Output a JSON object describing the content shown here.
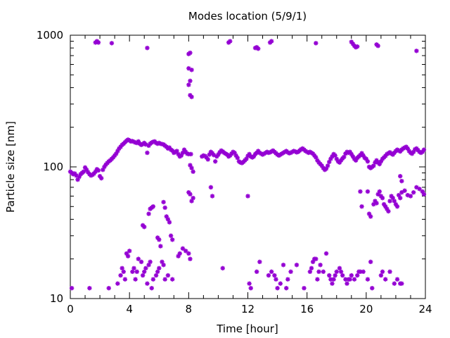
{
  "chart_data": {
    "type": "scatter",
    "title": "Modes location (5/9/1)",
    "xlabel": "Time [hour]",
    "ylabel": "Particle size [nm]",
    "xlim": [
      0,
      24
    ],
    "ylim": [
      10,
      1000
    ],
    "yscale": "log",
    "xticks": [
      0,
      4,
      8,
      12,
      16,
      20,
      24
    ],
    "yticks": [
      10,
      100,
      1000
    ],
    "grid": false,
    "legend": "none",
    "marker_color": "#9400d3",
    "points": [
      [
        0.0,
        92
      ],
      [
        0.1,
        90
      ],
      [
        0.2,
        88
      ],
      [
        0.3,
        89
      ],
      [
        0.4,
        86
      ],
      [
        0.5,
        80
      ],
      [
        0.6,
        84
      ],
      [
        0.7,
        88
      ],
      [
        0.8,
        90
      ],
      [
        0.9,
        92
      ],
      [
        1.0,
        99
      ],
      [
        1.1,
        95
      ],
      [
        1.2,
        91
      ],
      [
        1.3,
        88
      ],
      [
        1.4,
        86
      ],
      [
        1.5,
        87
      ],
      [
        1.6,
        89
      ],
      [
        1.7,
        92
      ],
      [
        1.8,
        96
      ],
      [
        1.9,
        94
      ],
      [
        2.0,
        85
      ],
      [
        2.1,
        82
      ],
      [
        2.2,
        95
      ],
      [
        2.3,
        100
      ],
      [
        2.4,
        104
      ],
      [
        2.5,
        107
      ],
      [
        2.6,
        110
      ],
      [
        2.7,
        112
      ],
      [
        2.8,
        115
      ],
      [
        2.9,
        118
      ],
      [
        3.0,
        122
      ],
      [
        3.1,
        126
      ],
      [
        3.2,
        132
      ],
      [
        3.3,
        138
      ],
      [
        3.4,
        142
      ],
      [
        3.5,
        147
      ],
      [
        3.6,
        150
      ],
      [
        3.7,
        154
      ],
      [
        3.8,
        158
      ],
      [
        3.9,
        161
      ],
      [
        4.0,
        159
      ],
      [
        4.1,
        156
      ],
      [
        4.2,
        157
      ],
      [
        4.3,
        155
      ],
      [
        4.4,
        153
      ],
      [
        4.5,
        152
      ],
      [
        4.6,
        156
      ],
      [
        4.7,
        150
      ],
      [
        4.8,
        147
      ],
      [
        4.9,
        149
      ],
      [
        5.0,
        152
      ],
      [
        5.1,
        148
      ],
      [
        5.2,
        128
      ],
      [
        5.3,
        145
      ],
      [
        5.4,
        150
      ],
      [
        5.5,
        153
      ],
      [
        5.6,
        155
      ],
      [
        5.7,
        156
      ],
      [
        5.8,
        152
      ],
      [
        5.9,
        150
      ],
      [
        6.0,
        152
      ],
      [
        6.1,
        150
      ],
      [
        6.2,
        149
      ],
      [
        6.3,
        148
      ],
      [
        6.4,
        145
      ],
      [
        6.5,
        142
      ],
      [
        6.6,
        138
      ],
      [
        6.7,
        140
      ],
      [
        6.8,
        135
      ],
      [
        6.9,
        133
      ],
      [
        7.0,
        128
      ],
      [
        7.1,
        130
      ],
      [
        7.2,
        132
      ],
      [
        7.3,
        125
      ],
      [
        7.4,
        120
      ],
      [
        7.5,
        122
      ],
      [
        7.6,
        128
      ],
      [
        7.7,
        135
      ],
      [
        7.8,
        130
      ],
      [
        7.9,
        126
      ],
      [
        8.0,
        125
      ],
      [
        8.1,
        103
      ],
      [
        8.15,
        125
      ],
      [
        8.2,
        98
      ],
      [
        8.3,
        92
      ],
      [
        8.9,
        120
      ],
      [
        9.0,
        122
      ],
      [
        9.1,
        121
      ],
      [
        9.2,
        118
      ],
      [
        9.3,
        114
      ],
      [
        9.4,
        124
      ],
      [
        9.5,
        130
      ],
      [
        9.6,
        127
      ],
      [
        9.7,
        123
      ],
      [
        9.8,
        110
      ],
      [
        9.9,
        120
      ],
      [
        10.0,
        124
      ],
      [
        10.1,
        129
      ],
      [
        10.2,
        133
      ],
      [
        10.3,
        131
      ],
      [
        10.4,
        128
      ],
      [
        10.5,
        126
      ],
      [
        10.6,
        124
      ],
      [
        10.7,
        120
      ],
      [
        10.8,
        122
      ],
      [
        10.9,
        126
      ],
      [
        11.0,
        130
      ],
      [
        11.1,
        128
      ],
      [
        11.2,
        122
      ],
      [
        11.3,
        117
      ],
      [
        11.4,
        110
      ],
      [
        11.5,
        108
      ],
      [
        11.6,
        107
      ],
      [
        11.7,
        109
      ],
      [
        11.8,
        112
      ],
      [
        11.9,
        115
      ],
      [
        12.0,
        121
      ],
      [
        12.1,
        125
      ],
      [
        12.2,
        120
      ],
      [
        12.3,
        118
      ],
      [
        12.4,
        120
      ],
      [
        12.5,
        125
      ],
      [
        12.6,
        128
      ],
      [
        12.7,
        132
      ],
      [
        12.8,
        128
      ],
      [
        12.9,
        126
      ],
      [
        13.0,
        124
      ],
      [
        13.1,
        126
      ],
      [
        13.2,
        128
      ],
      [
        13.3,
        130
      ],
      [
        13.4,
        128
      ],
      [
        13.5,
        129
      ],
      [
        13.6,
        131
      ],
      [
        13.7,
        133
      ],
      [
        13.8,
        130
      ],
      [
        13.9,
        127
      ],
      [
        14.0,
        124
      ],
      [
        14.1,
        122
      ],
      [
        14.2,
        124
      ],
      [
        14.3,
        126
      ],
      [
        14.4,
        128
      ],
      [
        14.5,
        130
      ],
      [
        14.6,
        132
      ],
      [
        14.7,
        129
      ],
      [
        14.8,
        127
      ],
      [
        14.9,
        128
      ],
      [
        15.0,
        130
      ],
      [
        15.1,
        132
      ],
      [
        15.2,
        131
      ],
      [
        15.3,
        129
      ],
      [
        15.4,
        130
      ],
      [
        15.5,
        133
      ],
      [
        15.6,
        136
      ],
      [
        15.7,
        138
      ],
      [
        15.8,
        135
      ],
      [
        15.9,
        132
      ],
      [
        16.0,
        130
      ],
      [
        16.1,
        128
      ],
      [
        16.2,
        130
      ],
      [
        16.3,
        128
      ],
      [
        16.4,
        126
      ],
      [
        16.5,
        122
      ],
      [
        16.6,
        118
      ],
      [
        16.7,
        112
      ],
      [
        16.8,
        108
      ],
      [
        16.9,
        105
      ],
      [
        17.0,
        102
      ],
      [
        17.1,
        98
      ],
      [
        17.2,
        95
      ],
      [
        17.3,
        97
      ],
      [
        17.4,
        102
      ],
      [
        17.5,
        109
      ],
      [
        17.6,
        115
      ],
      [
        17.7,
        120
      ],
      [
        17.8,
        125
      ],
      [
        17.9,
        122
      ],
      [
        18.0,
        115
      ],
      [
        18.1,
        110
      ],
      [
        18.2,
        108
      ],
      [
        18.3,
        112
      ],
      [
        18.4,
        116
      ],
      [
        18.5,
        119
      ],
      [
        18.6,
        126
      ],
      [
        18.7,
        130
      ],
      [
        18.8,
        128
      ],
      [
        18.9,
        130
      ],
      [
        19.0,
        125
      ],
      [
        19.1,
        120
      ],
      [
        19.2,
        115
      ],
      [
        19.3,
        112
      ],
      [
        19.4,
        117
      ],
      [
        19.5,
        120
      ],
      [
        19.6,
        123
      ],
      [
        19.7,
        127
      ],
      [
        19.8,
        122
      ],
      [
        19.9,
        117
      ],
      [
        20.0,
        115
      ],
      [
        20.1,
        110
      ],
      [
        20.2,
        100
      ],
      [
        20.3,
        98
      ],
      [
        20.4,
        100
      ],
      [
        20.5,
        102
      ],
      [
        20.6,
        108
      ],
      [
        20.7,
        112
      ],
      [
        20.8,
        108
      ],
      [
        20.9,
        105
      ],
      [
        21.0,
        110
      ],
      [
        21.1,
        115
      ],
      [
        21.2,
        118
      ],
      [
        21.3,
        121
      ],
      [
        21.4,
        125
      ],
      [
        21.5,
        127
      ],
      [
        21.6,
        129
      ],
      [
        21.7,
        126
      ],
      [
        21.8,
        124
      ],
      [
        21.9,
        128
      ],
      [
        22.0,
        132
      ],
      [
        22.1,
        135
      ],
      [
        22.2,
        133
      ],
      [
        22.3,
        131
      ],
      [
        22.4,
        135
      ],
      [
        22.5,
        138
      ],
      [
        22.6,
        140
      ],
      [
        22.7,
        142
      ],
      [
        22.8,
        138
      ],
      [
        22.9,
        132
      ],
      [
        23.0,
        128
      ],
      [
        23.1,
        126
      ],
      [
        23.2,
        130
      ],
      [
        23.3,
        136
      ],
      [
        23.4,
        138
      ],
      [
        23.5,
        134
      ],
      [
        23.6,
        130
      ],
      [
        23.7,
        128
      ],
      [
        23.8,
        130
      ],
      [
        23.9,
        135
      ],
      [
        0.1,
        12
      ],
      [
        1.3,
        12
      ],
      [
        2.6,
        12
      ],
      [
        3.2,
        13
      ],
      [
        3.4,
        15
      ],
      [
        3.5,
        17
      ],
      [
        3.6,
        16
      ],
      [
        3.7,
        14
      ],
      [
        3.8,
        22
      ],
      [
        3.9,
        21
      ],
      [
        4.0,
        23
      ],
      [
        4.2,
        16
      ],
      [
        4.3,
        17
      ],
      [
        4.4,
        14
      ],
      [
        4.5,
        16
      ],
      [
        4.6,
        20
      ],
      [
        4.8,
        19
      ],
      [
        4.9,
        15
      ],
      [
        5.0,
        16
      ],
      [
        5.1,
        17
      ],
      [
        5.2,
        13
      ],
      [
        5.3,
        18
      ],
      [
        5.4,
        19
      ],
      [
        5.5,
        12
      ],
      [
        5.6,
        14
      ],
      [
        5.8,
        15
      ],
      [
        5.9,
        16
      ],
      [
        6.0,
        17
      ],
      [
        6.2,
        19
      ],
      [
        6.3,
        18
      ],
      [
        6.4,
        14
      ],
      [
        6.6,
        15
      ],
      [
        6.9,
        14
      ],
      [
        7.4,
        22
      ],
      [
        7.6,
        24
      ],
      [
        7.8,
        23
      ],
      [
        8.0,
        22
      ],
      [
        8.1,
        20
      ],
      [
        10.3,
        17
      ],
      [
        12.1,
        13
      ],
      [
        12.2,
        12
      ],
      [
        12.6,
        16
      ],
      [
        12.8,
        19
      ],
      [
        13.4,
        15
      ],
      [
        13.6,
        16
      ],
      [
        13.8,
        15
      ],
      [
        13.9,
        14
      ],
      [
        14.0,
        12
      ],
      [
        14.2,
        13
      ],
      [
        14.4,
        18
      ],
      [
        14.6,
        12
      ],
      [
        14.7,
        14
      ],
      [
        14.9,
        16
      ],
      [
        15.3,
        18
      ],
      [
        15.8,
        12
      ],
      [
        16.2,
        16
      ],
      [
        16.3,
        17
      ],
      [
        16.4,
        19
      ],
      [
        16.5,
        20
      ],
      [
        16.6,
        20
      ],
      [
        16.7,
        14
      ],
      [
        16.8,
        16
      ],
      [
        16.9,
        18
      ],
      [
        17.1,
        16
      ],
      [
        17.3,
        22
      ],
      [
        17.5,
        15
      ],
      [
        17.6,
        14
      ],
      [
        17.7,
        13
      ],
      [
        17.8,
        14
      ],
      [
        17.9,
        15
      ],
      [
        18.0,
        16
      ],
      [
        18.2,
        17
      ],
      [
        18.3,
        16
      ],
      [
        18.4,
        15
      ],
      [
        18.6,
        14
      ],
      [
        18.7,
        13
      ],
      [
        18.8,
        14
      ],
      [
        18.9,
        14
      ],
      [
        19.0,
        15
      ],
      [
        19.2,
        14
      ],
      [
        19.4,
        15
      ],
      [
        19.5,
        16
      ],
      [
        19.6,
        16
      ],
      [
        19.8,
        16
      ],
      [
        20.1,
        14
      ],
      [
        20.3,
        19
      ],
      [
        20.4,
        12
      ],
      [
        21.0,
        15
      ],
      [
        21.1,
        16
      ],
      [
        21.3,
        14
      ],
      [
        21.6,
        16
      ],
      [
        21.9,
        13
      ],
      [
        22.1,
        14
      ],
      [
        22.3,
        13
      ],
      [
        22.4,
        13
      ],
      [
        4.9,
        36
      ],
      [
        5.0,
        35
      ],
      [
        5.3,
        44
      ],
      [
        5.4,
        48
      ],
      [
        5.5,
        49
      ],
      [
        5.6,
        50
      ],
      [
        5.9,
        29
      ],
      [
        6.0,
        28
      ],
      [
        6.1,
        25
      ],
      [
        6.3,
        54
      ],
      [
        6.4,
        49
      ],
      [
        6.5,
        42
      ],
      [
        6.6,
        40
      ],
      [
        6.7,
        38
      ],
      [
        6.8,
        30
      ],
      [
        6.9,
        28
      ],
      [
        7.3,
        21
      ],
      [
        8.0,
        64
      ],
      [
        8.1,
        62
      ],
      [
        8.2,
        55
      ],
      [
        8.3,
        58
      ],
      [
        9.5,
        70
      ],
      [
        9.6,
        60
      ],
      [
        12.0,
        60
      ],
      [
        19.6,
        65
      ],
      [
        19.7,
        50
      ],
      [
        20.1,
        65
      ],
      [
        20.2,
        44
      ],
      [
        20.3,
        42
      ],
      [
        20.5,
        52
      ],
      [
        20.6,
        55
      ],
      [
        20.7,
        53
      ],
      [
        20.8,
        62
      ],
      [
        20.9,
        65
      ],
      [
        21.0,
        60
      ],
      [
        21.1,
        58
      ],
      [
        21.2,
        52
      ],
      [
        21.3,
        50
      ],
      [
        21.4,
        48
      ],
      [
        21.5,
        46
      ],
      [
        21.6,
        55
      ],
      [
        21.7,
        60
      ],
      [
        21.8,
        58
      ],
      [
        21.9,
        55
      ],
      [
        22.0,
        52
      ],
      [
        22.1,
        50
      ],
      [
        22.2,
        61
      ],
      [
        22.3,
        58
      ],
      [
        22.4,
        64
      ],
      [
        22.6,
        66
      ],
      [
        22.8,
        61
      ],
      [
        23.0,
        60
      ],
      [
        23.2,
        64
      ],
      [
        23.4,
        70
      ],
      [
        23.6,
        68
      ],
      [
        23.8,
        65
      ],
      [
        23.9,
        62
      ],
      [
        22.3,
        85
      ],
      [
        22.4,
        78
      ],
      [
        1.7,
        880
      ],
      [
        1.8,
        900
      ],
      [
        1.9,
        880
      ],
      [
        2.8,
        870
      ],
      [
        5.2,
        800
      ],
      [
        8.0,
        720
      ],
      [
        8.1,
        735
      ],
      [
        8.0,
        560
      ],
      [
        8.2,
        545
      ],
      [
        8.1,
        450
      ],
      [
        8.0,
        420
      ],
      [
        8.1,
        350
      ],
      [
        8.2,
        340
      ],
      [
        10.7,
        880
      ],
      [
        10.8,
        900
      ],
      [
        12.5,
        800
      ],
      [
        12.6,
        810
      ],
      [
        12.7,
        790
      ],
      [
        13.5,
        880
      ],
      [
        13.6,
        900
      ],
      [
        16.6,
        870
      ],
      [
        19.0,
        890
      ],
      [
        19.1,
        860
      ],
      [
        19.2,
        830
      ],
      [
        19.3,
        810
      ],
      [
        19.4,
        820
      ],
      [
        20.7,
        850
      ],
      [
        20.8,
        830
      ],
      [
        23.4,
        760
      ]
    ]
  }
}
